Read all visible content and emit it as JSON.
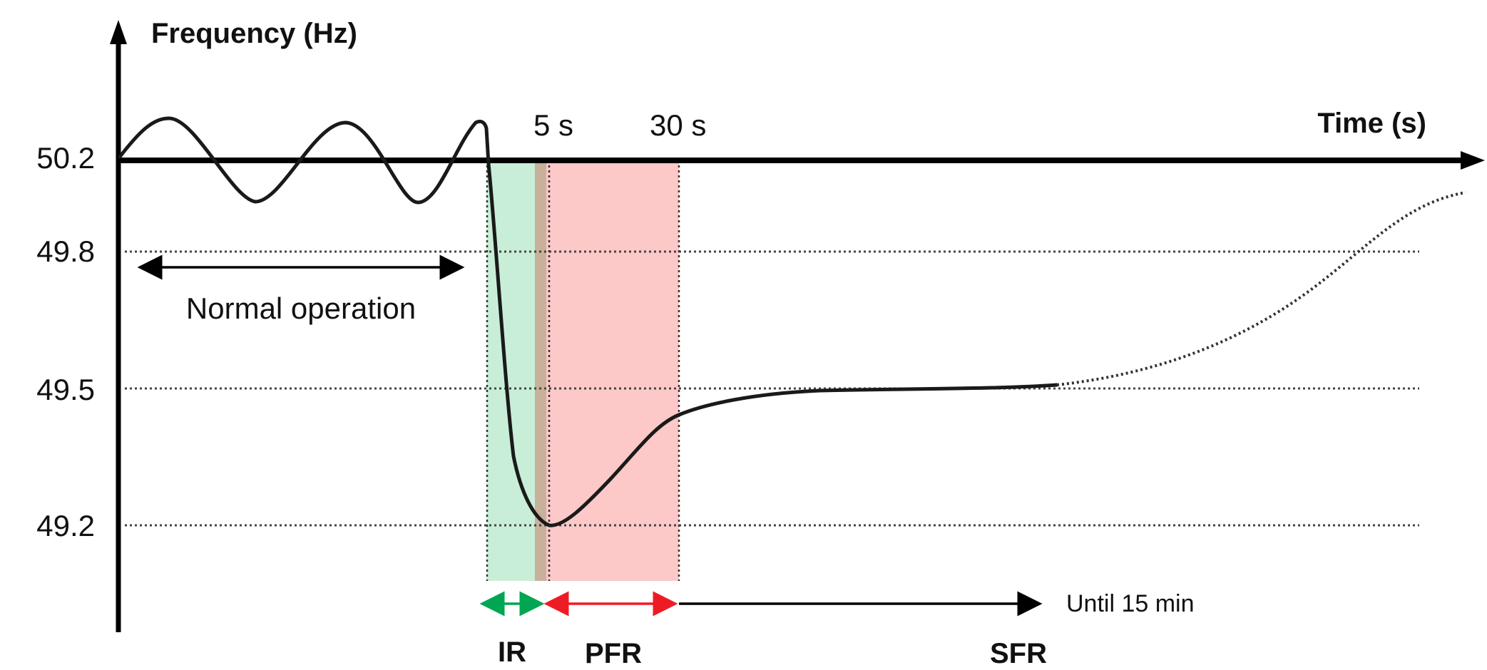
{
  "axes": {
    "y_label": "Frequency (Hz)",
    "x_label": "Time (s)",
    "y_ticks": [
      "50.2",
      "49.8",
      "49.5",
      "49.2"
    ],
    "time_markers": [
      "5 s",
      "30 s"
    ]
  },
  "annotations": {
    "normal_operation": "Normal operation",
    "until": "Until 15 min"
  },
  "phases": [
    {
      "name": "IR",
      "color": "#00a651"
    },
    {
      "name": "PFR",
      "color": "#ed1c24"
    },
    {
      "name": "SFR",
      "color": "#000000"
    }
  ],
  "colors": {
    "ir_band": "#c9eed8",
    "pfr_band": "#fcc8c8",
    "overlap_band": "#c9b09a",
    "curve": "#1a1a1a"
  }
}
